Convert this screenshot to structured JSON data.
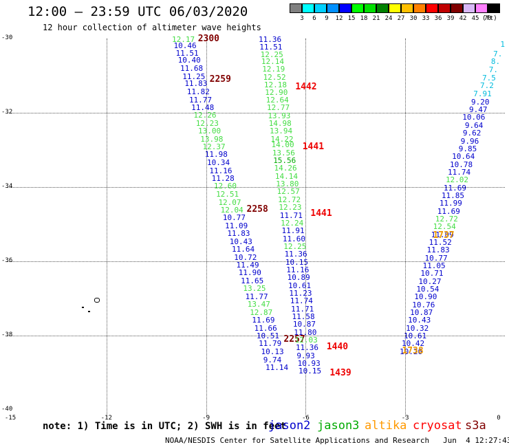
{
  "header": {
    "title": "12:00 — 23:59 UTC 06/03/2020",
    "subtitle": "12 hour collection of altimeter wave heights"
  },
  "colorbar": {
    "labels": [
      "3",
      "6",
      "9",
      "12",
      "15",
      "18",
      "21",
      "24",
      "27",
      "30",
      "33",
      "36",
      "39",
      "42",
      "45",
      "70"
    ],
    "colors": [
      "#808080",
      "#00ffff",
      "#00d0ff",
      "#0090ff",
      "#0000ff",
      "#00ff00",
      "#00e000",
      "#008000",
      "#ffff00",
      "#ffc000",
      "#ff8000",
      "#ff0000",
      "#c00000",
      "#800000",
      "#d8b8f8",
      "#ff80ff",
      "#000000"
    ],
    "unit": "(ft)"
  },
  "axes": {
    "y_ticks": [
      "-30",
      "-32",
      "-34",
      "-36",
      "-38",
      "-40"
    ],
    "x_ticks": [
      "-15",
      "-12",
      "-9",
      "-6",
      "-3",
      "0"
    ]
  },
  "note": "note: 1) Time is in UTC; 2) SWH is in feet",
  "legend": [
    {
      "label": "jason2",
      "color": "#0000cc"
    },
    {
      "label": "jason3",
      "color": "#00aa00"
    },
    {
      "label": "altika",
      "color": "#ff9900"
    },
    {
      "label": "cryosat",
      "color": "#ff0000"
    },
    {
      "label": "s3a",
      "color": "#800000"
    }
  ],
  "footer": "NOAA/NESDIS Center for Satellite Applications and Research   Jun  4 12:27:43 UTC 2020",
  "chart_data": {
    "type": "scatter",
    "xlim": [
      -15,
      0
    ],
    "ylim": [
      -40,
      -30
    ],
    "grid": true,
    "tracks": [
      {
        "satellite": "s3a",
        "time_labels": [
          {
            "label": "2300",
            "lat": -30.0
          },
          {
            "label": "2259",
            "lat": -31.1
          },
          {
            "label": "2258",
            "lat": -34.6
          },
          {
            "label": "2257",
            "lat": -38.1
          }
        ],
        "points": [
          {
            "v": "12.17",
            "lat": -30.02,
            "c": "#44dd44"
          },
          {
            "v": "10.46",
            "lat": -30.18,
            "c": "#0000cc"
          },
          {
            "v": "11.51",
            "lat": -30.38,
            "c": "#0000cc"
          },
          {
            "v": "10.40",
            "lat": -30.58,
            "c": "#0000cc"
          },
          {
            "v": "11.68",
            "lat": -30.8,
            "c": "#0000cc"
          },
          {
            "v": "11.25",
            "lat": -31.01,
            "c": "#0000cc"
          },
          {
            "v": "11.83",
            "lat": -31.21,
            "c": "#0000cc"
          },
          {
            "v": "11.82",
            "lat": -31.43,
            "c": "#0000cc"
          },
          {
            "v": "11.77",
            "lat": -31.64,
            "c": "#0000cc"
          },
          {
            "v": "11.48",
            "lat": -31.85,
            "c": "#0000cc"
          },
          {
            "v": "12.26",
            "lat": -32.06,
            "c": "#44dd44"
          },
          {
            "v": "12.23",
            "lat": -32.28,
            "c": "#44dd44"
          },
          {
            "v": "13.00",
            "lat": -32.49,
            "c": "#44dd44"
          },
          {
            "v": "13.98",
            "lat": -32.7,
            "c": "#44dd44"
          },
          {
            "v": "12.37",
            "lat": -32.91,
            "c": "#44dd44"
          },
          {
            "v": "11.98",
            "lat": -33.12,
            "c": "#0000cc"
          },
          {
            "v": "10.34",
            "lat": -33.33,
            "c": "#0000cc"
          },
          {
            "v": "11.16",
            "lat": -33.55,
            "c": "#0000cc"
          },
          {
            "v": "11.28",
            "lat": -33.76,
            "c": "#0000cc"
          },
          {
            "v": "12.60",
            "lat": -33.97,
            "c": "#44dd44"
          },
          {
            "v": "12.51",
            "lat": -34.18,
            "c": "#44dd44"
          },
          {
            "v": "12.07",
            "lat": -34.4,
            "c": "#44dd44"
          },
          {
            "v": "12.04",
            "lat": -34.61,
            "c": "#44dd44"
          },
          {
            "v": "10.77",
            "lat": -34.82,
            "c": "#0000cc"
          },
          {
            "v": "11.09",
            "lat": -35.03,
            "c": "#0000cc"
          },
          {
            "v": "11.83",
            "lat": -35.24,
            "c": "#0000cc"
          },
          {
            "v": "10.43",
            "lat": -35.46,
            "c": "#0000cc"
          },
          {
            "v": "11.64",
            "lat": -35.67,
            "c": "#0000cc"
          },
          {
            "v": "10.72",
            "lat": -35.88,
            "c": "#0000cc"
          },
          {
            "v": "11.49",
            "lat": -36.09,
            "c": "#0000cc"
          },
          {
            "v": "11.90",
            "lat": -36.3,
            "c": "#0000cc"
          },
          {
            "v": "11.65",
            "lat": -36.52,
            "c": "#0000cc"
          },
          {
            "v": "13.25",
            "lat": -36.73,
            "c": "#44dd44"
          },
          {
            "v": "11.77",
            "lat": -36.94,
            "c": "#0000cc"
          },
          {
            "v": "13.47",
            "lat": -37.15,
            "c": "#44dd44"
          },
          {
            "v": "12.87",
            "lat": -37.37,
            "c": "#44dd44"
          },
          {
            "v": "11.69",
            "lat": -37.58,
            "c": "#0000cc"
          },
          {
            "v": "11.66",
            "lat": -37.79,
            "c": "#0000cc"
          },
          {
            "v": "10.51",
            "lat": -38.0,
            "c": "#0000cc"
          },
          {
            "v": "11.79",
            "lat": -38.21,
            "c": "#0000cc"
          },
          {
            "v": "10.13",
            "lat": -38.43,
            "c": "#0000cc"
          },
          {
            "v": "9.74",
            "lat": -38.64,
            "c": "#0000cc"
          },
          {
            "v": "11.14",
            "lat": -38.85,
            "c": "#0000cc"
          }
        ]
      },
      {
        "satellite": "cryosat",
        "time_labels": [
          {
            "label": "1442",
            "lat": -31.3
          },
          {
            "label": "1441",
            "lat": -32.9
          },
          {
            "label": "1441",
            "lat": -34.7
          },
          {
            "label": "1440",
            "lat": -38.3
          },
          {
            "label": "1439",
            "lat": -39.0
          }
        ],
        "points": [
          {
            "v": "11.36",
            "lat": -30.02,
            "c": "#0000cc"
          },
          {
            "v": "11.51",
            "lat": -30.22,
            "c": "#0000cc"
          },
          {
            "v": "12.25",
            "lat": -30.42,
            "c": "#44dd44"
          },
          {
            "v": "12.14",
            "lat": -30.62,
            "c": "#44dd44"
          },
          {
            "v": "12.19",
            "lat": -30.82,
            "c": "#44dd44"
          },
          {
            "v": "12.52",
            "lat": -31.03,
            "c": "#44dd44"
          },
          {
            "v": "12.18",
            "lat": -31.24,
            "c": "#44dd44"
          },
          {
            "v": "12.90",
            "lat": -31.44,
            "c": "#44dd44"
          },
          {
            "v": "12.64",
            "lat": -31.65,
            "c": "#44dd44"
          },
          {
            "v": "12.77",
            "lat": -31.86,
            "c": "#44dd44"
          },
          {
            "v": "13.93",
            "lat": -32.07,
            "c": "#44dd44"
          },
          {
            "v": "14.98",
            "lat": -32.28,
            "c": "#44dd44"
          },
          {
            "v": "13.94",
            "lat": -32.49,
            "c": "#44dd44"
          },
          {
            "v": "14.22",
            "lat": -32.7,
            "c": "#44dd44"
          },
          {
            "v": "14.00",
            "lat": -32.86,
            "c": "#44dd44"
          },
          {
            "v": "13.56",
            "lat": -33.07,
            "c": "#44dd44"
          },
          {
            "v": "15.56",
            "lat": -33.28,
            "c": "#00aa00"
          },
          {
            "v": "14.26",
            "lat": -33.49,
            "c": "#44dd44"
          },
          {
            "v": "14.14",
            "lat": -33.7,
            "c": "#44dd44"
          },
          {
            "v": "13.80",
            "lat": -33.91,
            "c": "#44dd44"
          },
          {
            "v": "12.57",
            "lat": -34.12,
            "c": "#44dd44"
          },
          {
            "v": "12.72",
            "lat": -34.33,
            "c": "#44dd44"
          },
          {
            "v": "12.23",
            "lat": -34.54,
            "c": "#44dd44"
          },
          {
            "v": "11.71",
            "lat": -34.75,
            "c": "#0000cc"
          },
          {
            "v": "12.24",
            "lat": -34.96,
            "c": "#44dd44"
          },
          {
            "v": "11.91",
            "lat": -35.17,
            "c": "#0000cc"
          },
          {
            "v": "11.60",
            "lat": -35.38,
            "c": "#0000cc"
          },
          {
            "v": "12.25",
            "lat": -35.59,
            "c": "#44dd44"
          },
          {
            "v": "11.36",
            "lat": -35.8,
            "c": "#0000cc"
          },
          {
            "v": "10.15",
            "lat": -36.01,
            "c": "#0000cc"
          },
          {
            "v": "11.16",
            "lat": -36.22,
            "c": "#0000cc"
          },
          {
            "v": "10.89",
            "lat": -36.43,
            "c": "#0000cc"
          },
          {
            "v": "10.61",
            "lat": -36.64,
            "c": "#0000cc"
          },
          {
            "v": "11.23",
            "lat": -36.85,
            "c": "#0000cc"
          },
          {
            "v": "11.74",
            "lat": -37.06,
            "c": "#0000cc"
          },
          {
            "v": "11.71",
            "lat": -37.27,
            "c": "#0000cc"
          },
          {
            "v": "11.58",
            "lat": -37.48,
            "c": "#0000cc"
          },
          {
            "v": "10.87",
            "lat": -37.69,
            "c": "#0000cc"
          },
          {
            "v": "11.80",
            "lat": -37.9,
            "c": "#0000cc"
          },
          {
            "v": "12.03",
            "lat": -38.11,
            "c": "#44dd44"
          },
          {
            "v": "11.36",
            "lat": -38.32,
            "c": "#0000cc"
          },
          {
            "v": "9.93",
            "lat": -38.53,
            "c": "#0000cc"
          },
          {
            "v": "10.93",
            "lat": -38.74,
            "c": "#0000cc"
          },
          {
            "v": "10.15",
            "lat": -38.95,
            "c": "#0000cc"
          }
        ]
      },
      {
        "satellite": "altika",
        "time_labels": [
          {
            "label": "1737",
            "lat": -35.3
          },
          {
            "label": "1738",
            "lat": -38.4
          }
        ],
        "points": [
          {
            "v": "1",
            "lat": -30.15,
            "c": "#00bbdd"
          },
          {
            "v": "7.",
            "lat": -30.4,
            "c": "#00bbdd"
          },
          {
            "v": "8.",
            "lat": -30.62,
            "c": "#00bbdd"
          },
          {
            "v": "7.",
            "lat": -30.84,
            "c": "#00bbdd"
          },
          {
            "v": "7.5",
            "lat": -31.05,
            "c": "#00bbdd"
          },
          {
            "v": "7.2",
            "lat": -31.26,
            "c": "#00bbdd"
          },
          {
            "v": "7.91",
            "lat": -31.48,
            "c": "#00bbdd"
          },
          {
            "v": "9.20",
            "lat": -31.7,
            "c": "#0000cc"
          },
          {
            "v": "9.47",
            "lat": -31.91,
            "c": "#0000cc"
          },
          {
            "v": "10.06",
            "lat": -32.12,
            "c": "#0000cc"
          },
          {
            "v": "9.64",
            "lat": -32.33,
            "c": "#0000cc"
          },
          {
            "v": "9.62",
            "lat": -32.54,
            "c": "#0000cc"
          },
          {
            "v": "9.96",
            "lat": -32.75,
            "c": "#0000cc"
          },
          {
            "v": "9.85",
            "lat": -32.96,
            "c": "#0000cc"
          },
          {
            "v": "10.64",
            "lat": -33.17,
            "c": "#0000cc"
          },
          {
            "v": "10.78",
            "lat": -33.38,
            "c": "#0000cc"
          },
          {
            "v": "11.74",
            "lat": -33.59,
            "c": "#0000cc"
          },
          {
            "v": "12.02",
            "lat": -33.8,
            "c": "#44dd44"
          },
          {
            "v": "11.69",
            "lat": -34.01,
            "c": "#0000cc"
          },
          {
            "v": "11.85",
            "lat": -34.22,
            "c": "#0000cc"
          },
          {
            "v": "11.99",
            "lat": -34.43,
            "c": "#0000cc"
          },
          {
            "v": "11.69",
            "lat": -34.64,
            "c": "#0000cc"
          },
          {
            "v": "12.72",
            "lat": -34.85,
            "c": "#44dd44"
          },
          {
            "v": "12.54",
            "lat": -35.06,
            "c": "#44dd44"
          },
          {
            "v": "11.09",
            "lat": -35.27,
            "c": "#0000cc"
          },
          {
            "v": "11.52",
            "lat": -35.48,
            "c": "#0000cc"
          },
          {
            "v": "11.83",
            "lat": -35.69,
            "c": "#0000cc"
          },
          {
            "v": "10.77",
            "lat": -35.9,
            "c": "#0000cc"
          },
          {
            "v": "11.05",
            "lat": -36.11,
            "c": "#0000cc"
          },
          {
            "v": "10.71",
            "lat": -36.32,
            "c": "#0000cc"
          },
          {
            "v": "10.27",
            "lat": -36.53,
            "c": "#0000cc"
          },
          {
            "v": "10.54",
            "lat": -36.74,
            "c": "#0000cc"
          },
          {
            "v": "10.90",
            "lat": -36.95,
            "c": "#0000cc"
          },
          {
            "v": "10.76",
            "lat": -37.16,
            "c": "#0000cc"
          },
          {
            "v": "10.87",
            "lat": -37.37,
            "c": "#0000cc"
          },
          {
            "v": "10.43",
            "lat": -37.58,
            "c": "#0000cc"
          },
          {
            "v": "10.32",
            "lat": -37.79,
            "c": "#0000cc"
          },
          {
            "v": "10.61",
            "lat": -38.0,
            "c": "#0000cc"
          },
          {
            "v": "10.42",
            "lat": -38.21,
            "c": "#0000cc"
          },
          {
            "v": "10.26",
            "lat": -38.42,
            "c": "#0000cc"
          }
        ]
      }
    ]
  }
}
